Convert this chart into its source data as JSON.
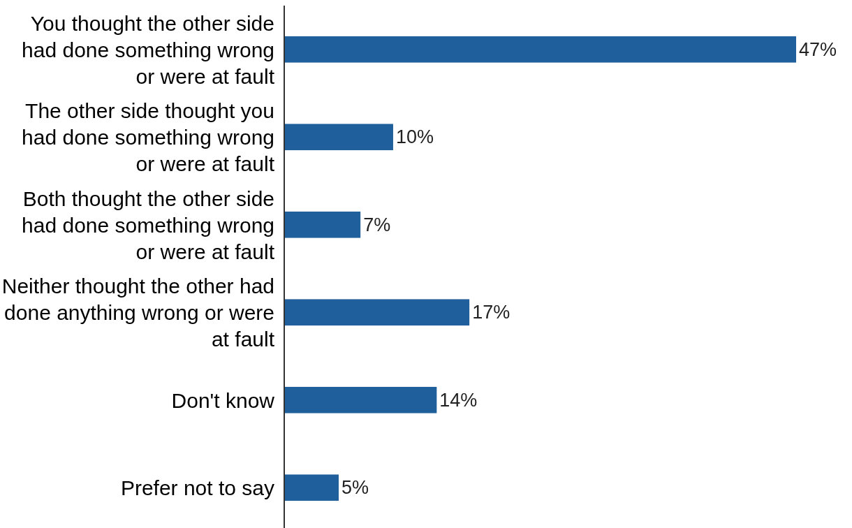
{
  "chart_data": {
    "type": "bar",
    "orientation": "horizontal",
    "categories": [
      "You thought the other side had done something wrong or were at fault",
      "The other side thought you had done something wrong or were at fault",
      "Both thought the other side had done something wrong or were at fault",
      "Neither thought the other had done anything wrong or were at fault",
      "Don't know",
      "Prefer not to say"
    ],
    "values": [
      47,
      10,
      7,
      17,
      14,
      5
    ],
    "value_labels": [
      "47%",
      "10%",
      "7%",
      "17%",
      "14%",
      "5%"
    ],
    "color": "#1f5f9b"
  }
}
